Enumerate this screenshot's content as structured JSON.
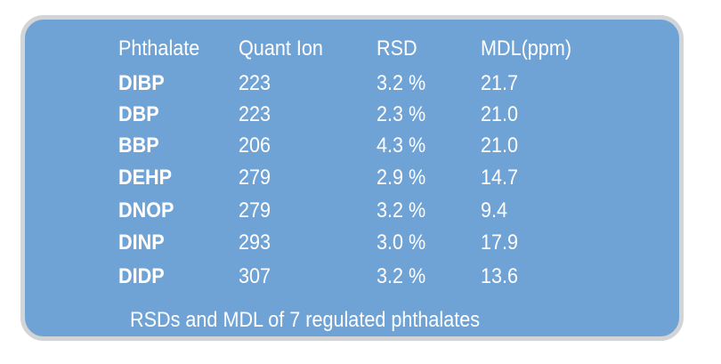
{
  "table": {
    "headers": [
      "Phthalate",
      "Quant Ion",
      "RSD",
      "MDL(ppm)"
    ],
    "rows": [
      {
        "name": "DIBP",
        "ion": "223",
        "rsd": "3.2 %",
        "mdl": "21.7"
      },
      {
        "name": "DBP",
        "ion": "223",
        "rsd": "2.3 %",
        "mdl": "21.0"
      },
      {
        "name": "BBP",
        "ion": "206",
        "rsd": "4.3 %",
        "mdl": "21.0"
      },
      {
        "name": "DEHP",
        "ion": "279",
        "rsd": "2.9 %",
        "mdl": "14.7"
      },
      {
        "name": "DNOP",
        "ion": "279",
        "rsd": "3.2 %",
        "mdl": "9.4"
      },
      {
        "name": "DINP",
        "ion": "293",
        "rsd": "3.0 %",
        "mdl": "17.9"
      },
      {
        "name": "DIDP",
        "ion": "307",
        "rsd": "3.2 %",
        "mdl": "13.6"
      }
    ]
  },
  "caption": "RSDs and MDL of 7 regulated phthalates",
  "colors": {
    "panel_fill": "#6fa3d6",
    "panel_border": "#d3d4d6",
    "text": "#ffffff"
  }
}
